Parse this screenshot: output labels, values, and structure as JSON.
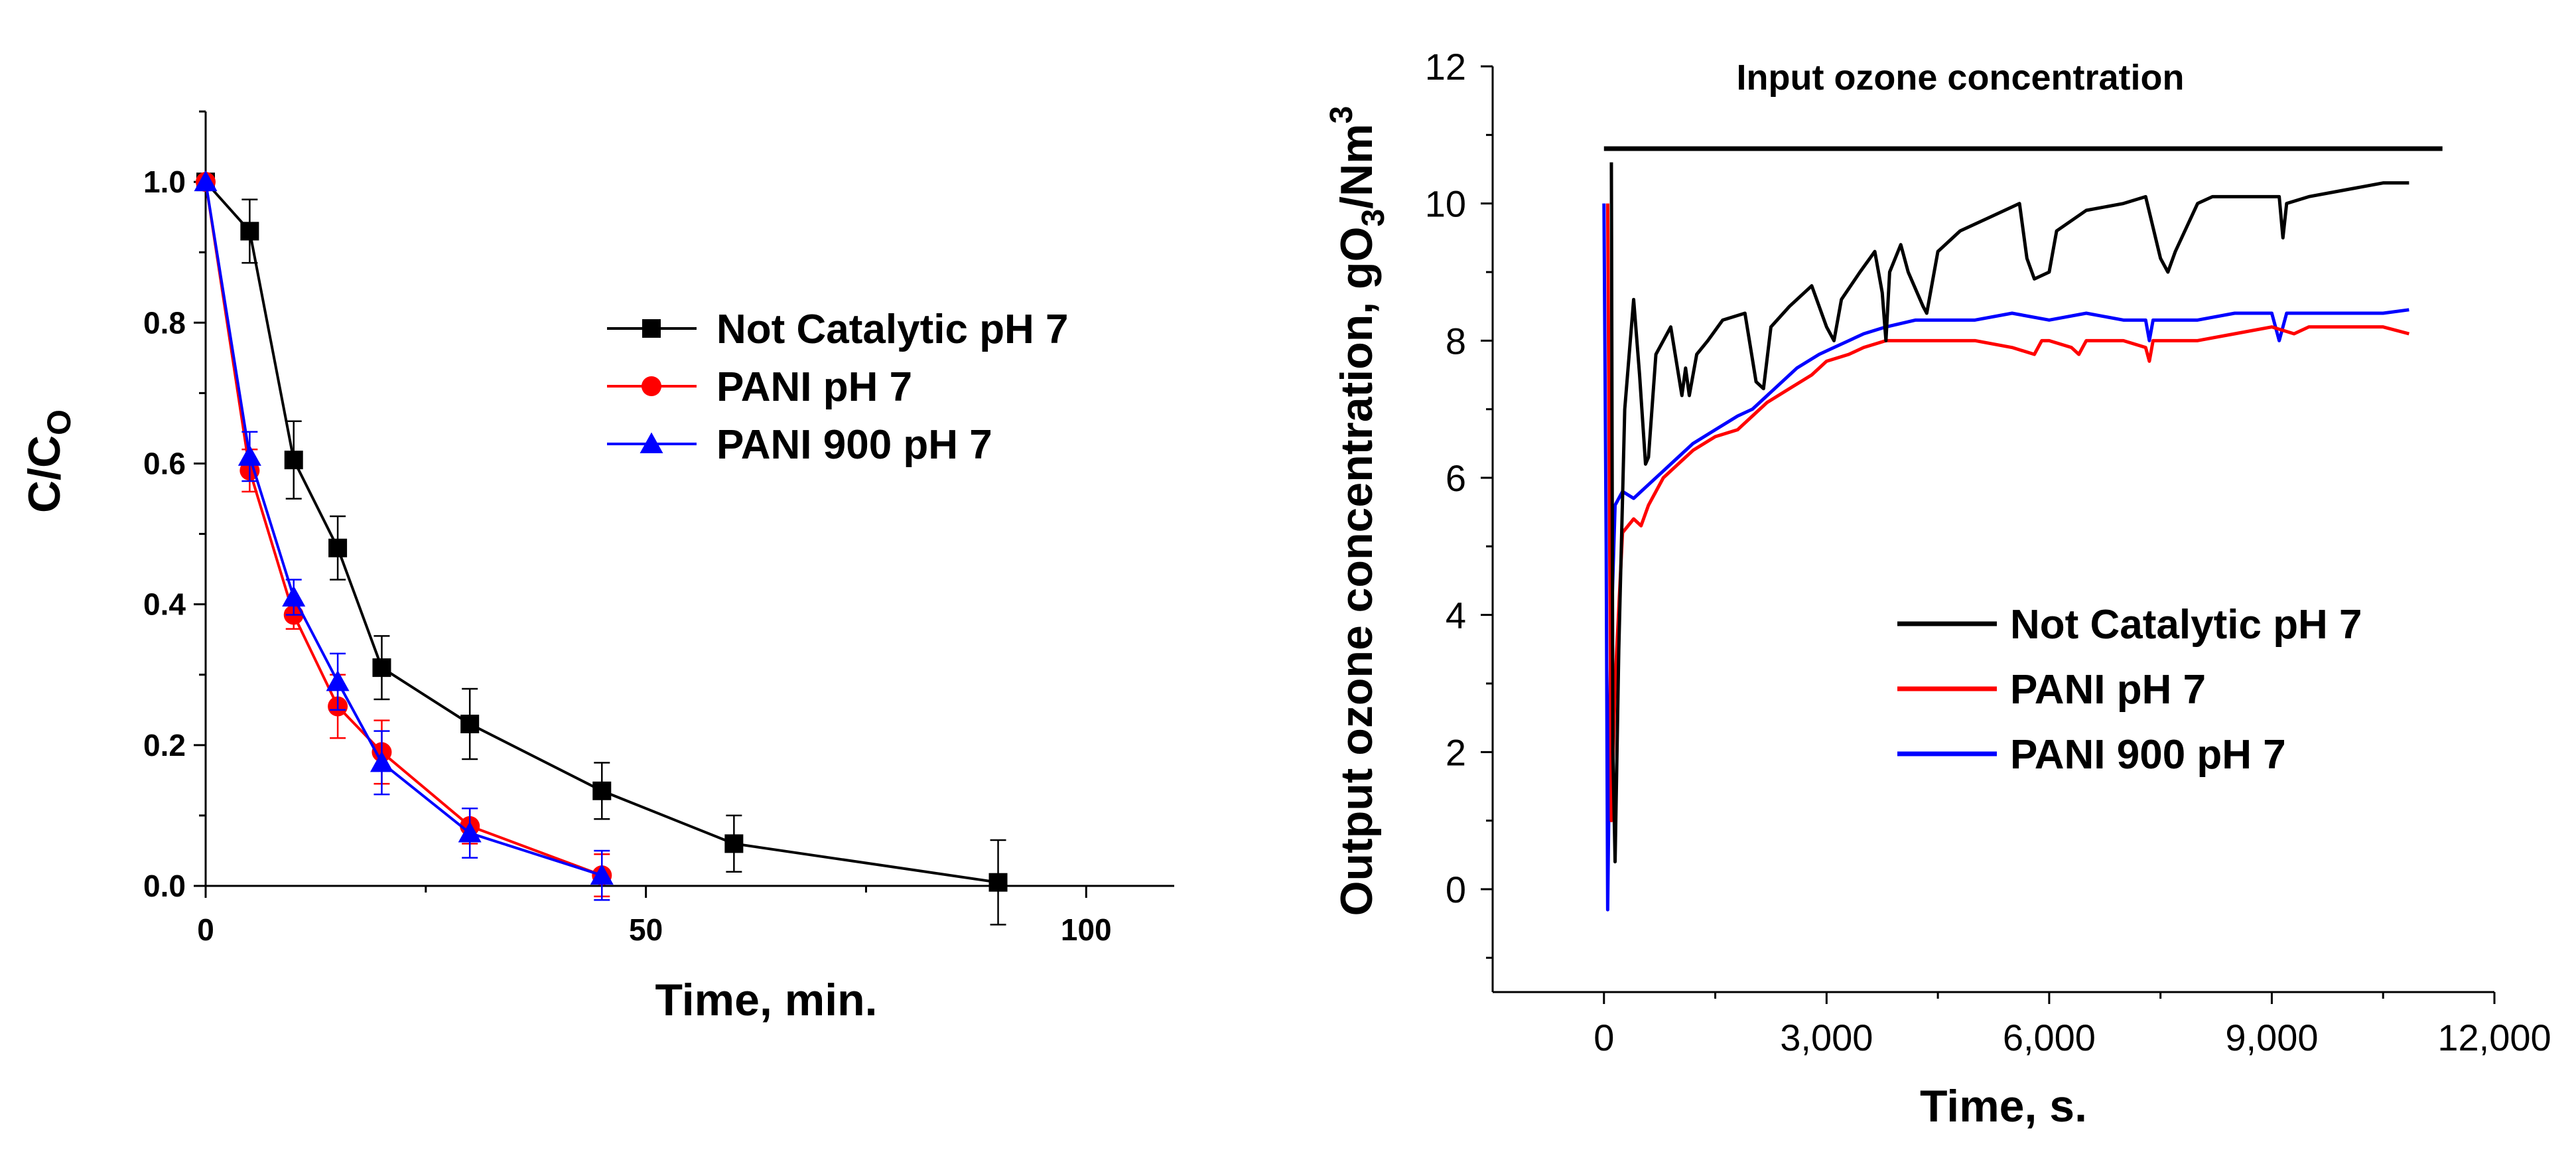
{
  "chart_data": [
    {
      "type": "line",
      "title": "",
      "xlabel": "Time, min.",
      "ylabel_main": "C/C",
      "ylabel_sub": "O",
      "xlim": [
        0,
        110
      ],
      "ylim": [
        0,
        1.1
      ],
      "xticks": [
        0,
        50,
        100
      ],
      "xtick_labels": [
        "0",
        "50",
        "100"
      ],
      "yticks": [
        0,
        0.2,
        0.4,
        0.6,
        0.8,
        1.0
      ],
      "ytick_labels": [
        "0.0",
        "0.2",
        "0.4",
        "0.6",
        "0.8",
        "1.0"
      ],
      "legend_position": "center-right",
      "series": [
        {
          "name": "Not Catalytic  pH 7",
          "color": "#000000",
          "marker": "square",
          "x": [
            0,
            5,
            10,
            15,
            20,
            30,
            45,
            60,
            90
          ],
          "y": [
            1.0,
            0.93,
            0.605,
            0.48,
            0.31,
            0.23,
            0.135,
            0.06,
            0.005
          ],
          "err": [
            0,
            0.045,
            0.055,
            0.045,
            0.045,
            0.05,
            0.04,
            0.04,
            0.06
          ]
        },
        {
          "name": "PANI pH 7",
          "color": "#ff0000",
          "marker": "circle",
          "x": [
            0,
            5,
            10,
            15,
            20,
            30,
            45
          ],
          "y": [
            1.0,
            0.59,
            0.385,
            0.255,
            0.19,
            0.085,
            0.015
          ],
          "err": [
            0,
            0.03,
            0.02,
            0.045,
            0.045,
            0.025,
            0.03
          ]
        },
        {
          "name": "PANI 900 pH 7",
          "color": "#0000ff",
          "marker": "triangle",
          "x": [
            0,
            5,
            10,
            15,
            20,
            30,
            45
          ],
          "y": [
            1.0,
            0.61,
            0.41,
            0.29,
            0.175,
            0.075,
            0.015
          ],
          "err": [
            0,
            0.035,
            0.025,
            0.04,
            0.045,
            0.035,
            0.035
          ]
        }
      ]
    },
    {
      "type": "line",
      "title": "",
      "annotation": "Input ozone concentration",
      "xlabel": "Time, s.",
      "ylabel_parts": [
        "Output ozone concentration, gO",
        "3",
        "/Nm",
        "3"
      ],
      "xlim": [
        -1500,
        12000
      ],
      "ylim": [
        -1.5,
        12
      ],
      "xticks": [
        0,
        3000,
        6000,
        9000,
        12000
      ],
      "xtick_labels": [
        "0",
        "3,000",
        "6,000",
        "9,000",
        "12,000"
      ],
      "yticks": [
        0,
        2,
        4,
        6,
        8,
        10,
        12
      ],
      "ytick_labels": [
        "0",
        "2",
        "4",
        "6",
        "8",
        "10",
        "12"
      ],
      "legend_position": "lower-right",
      "series": [
        {
          "name": "Input ozone concentration",
          "color": "#000000",
          "x": [
            0,
            80,
            90,
            11300
          ],
          "y": [
            10.8,
            10.8,
            10.8,
            10.8
          ]
        },
        {
          "name": "Not Catalytic pH 7",
          "color": "#000000",
          "x": [
            100,
            120,
            150,
            200,
            280,
            400,
            480,
            560,
            600,
            700,
            800,
            900,
            1050,
            1100,
            1150,
            1250,
            1400,
            1600,
            1900,
            2050,
            2150,
            2250,
            2500,
            2800,
            3000,
            3100,
            3200,
            3450,
            3650,
            3750,
            3800,
            3850,
            4000,
            4100,
            4300,
            4350,
            4400,
            4500,
            4800,
            5200,
            5600,
            5700,
            5800,
            6000,
            6100,
            6500,
            7000,
            7300,
            7500,
            7600,
            7700,
            8000,
            8200,
            8400,
            8800,
            9100,
            9150,
            9200,
            9500,
            10000,
            10500,
            10850
          ],
          "y": [
            10.6,
            2.0,
            0.4,
            3.5,
            7.0,
            8.6,
            7.5,
            6.2,
            6.3,
            7.8,
            8.0,
            8.2,
            7.2,
            7.6,
            7.2,
            7.8,
            8.0,
            8.3,
            8.4,
            7.4,
            7.3,
            8.2,
            8.5,
            8.8,
            8.2,
            8.0,
            8.6,
            9.0,
            9.3,
            8.7,
            8.0,
            9.0,
            9.4,
            9.0,
            8.5,
            8.4,
            8.7,
            9.3,
            9.6,
            9.8,
            10.0,
            9.2,
            8.9,
            9.0,
            9.6,
            9.9,
            10.0,
            10.1,
            9.2,
            9.0,
            9.3,
            10.0,
            10.1,
            10.1,
            10.1,
            10.1,
            9.5,
            10.0,
            10.1,
            10.2,
            10.3,
            10.3
          ]
        },
        {
          "name": "PANI  pH 7",
          "color": "#ff0000",
          "x": [
            50,
            100,
            150,
            250,
            400,
            500,
            600,
            800,
            1000,
            1200,
            1500,
            1800,
            2000,
            2200,
            2500,
            2800,
            3000,
            3300,
            3500,
            3800,
            4000,
            4500,
            5000,
            5500,
            5800,
            5900,
            6000,
            6300,
            6400,
            6500,
            7000,
            7300,
            7350,
            7400,
            8000,
            8500,
            9000,
            9300,
            9500,
            10000,
            10500,
            10850
          ],
          "y": [
            10.0,
            1.0,
            3.0,
            5.2,
            5.4,
            5.3,
            5.6,
            6.0,
            6.2,
            6.4,
            6.6,
            6.7,
            6.9,
            7.1,
            7.3,
            7.5,
            7.7,
            7.8,
            7.9,
            8.0,
            8.0,
            8.0,
            8.0,
            7.9,
            7.8,
            8.0,
            8.0,
            7.9,
            7.8,
            8.0,
            8.0,
            7.9,
            7.7,
            8.0,
            8.0,
            8.1,
            8.2,
            8.1,
            8.2,
            8.2,
            8.2,
            8.1
          ]
        },
        {
          "name": "PANI 900 pH 7",
          "color": "#0000ff",
          "x": [
            0,
            30,
            50,
            90,
            150,
            250,
            400,
            600,
            800,
            1000,
            1200,
            1500,
            1800,
            2000,
            2300,
            2600,
            2900,
            3100,
            3300,
            3500,
            3800,
            4200,
            4600,
            5000,
            5500,
            6000,
            6500,
            7000,
            7300,
            7350,
            7400,
            8000,
            8500,
            9000,
            9100,
            9200,
            9500,
            10000,
            10500,
            10850
          ],
          "y": [
            10.0,
            5.0,
            -0.3,
            3.5,
            5.6,
            5.8,
            5.7,
            5.9,
            6.1,
            6.3,
            6.5,
            6.7,
            6.9,
            7.0,
            7.3,
            7.6,
            7.8,
            7.9,
            8.0,
            8.1,
            8.2,
            8.3,
            8.3,
            8.3,
            8.4,
            8.3,
            8.4,
            8.3,
            8.3,
            8.0,
            8.3,
            8.3,
            8.4,
            8.4,
            8.0,
            8.4,
            8.4,
            8.4,
            8.4,
            8.45
          ]
        }
      ]
    }
  ]
}
